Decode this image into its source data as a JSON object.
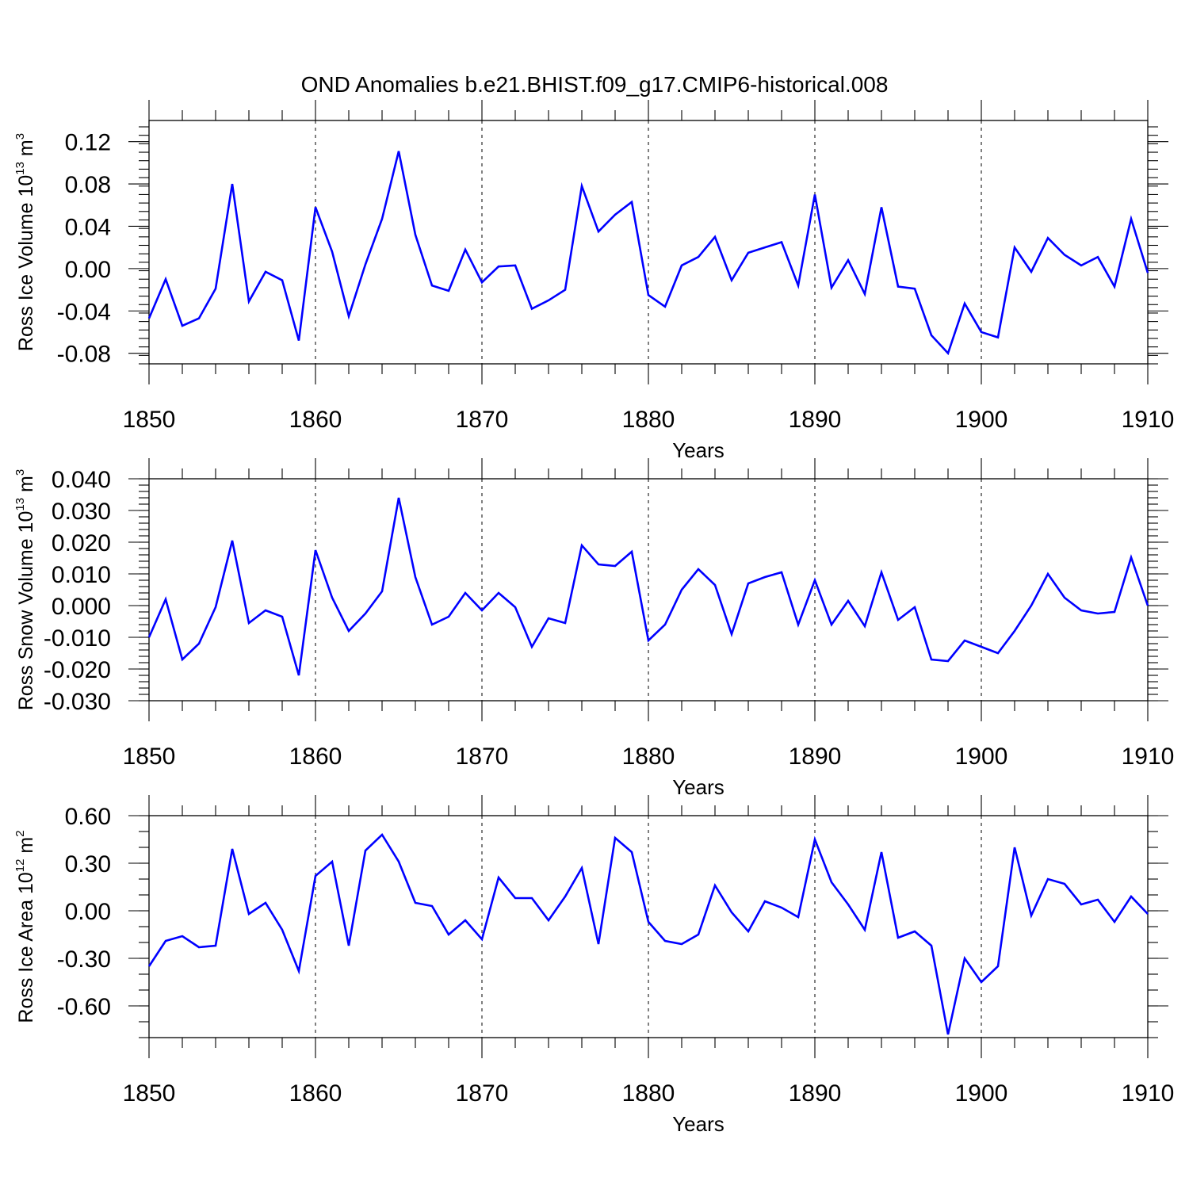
{
  "chart_data": {
    "title": "OND Anomalies b.e21.BHIST.f09_g17.CMIP6-historical.008",
    "type": "line",
    "line_color": "#0000FF",
    "panels": [
      {
        "ylabel_main": "Ross Ice Volume 10",
        "ylabel_exp": "13",
        "ylabel_unit": " m",
        "ylabel_unit_exp": "3",
        "xlabel": "Years",
        "xlim": [
          1850,
          1910
        ],
        "ylim": [
          -0.09,
          0.14
        ],
        "x_ticks": [
          1850,
          1860,
          1870,
          1880,
          1890,
          1900,
          1910
        ],
        "x_tick_labels": [
          "1850",
          "1860",
          "1870",
          "1880",
          "1890",
          "1900",
          "1910"
        ],
        "y_ticks": [
          -0.08,
          -0.04,
          0.0,
          0.04,
          0.08,
          0.12
        ],
        "y_tick_labels": [
          "-0.08",
          "-0.04",
          "0.00",
          "0.04",
          "0.08",
          "0.12"
        ],
        "y_minor_step": 0.008,
        "x_start": 1850,
        "values": [
          -0.047,
          -0.01,
          -0.054,
          -0.047,
          -0.019,
          0.08,
          -0.031,
          -0.003,
          -0.011,
          -0.068,
          0.058,
          0.016,
          -0.045,
          0.004,
          0.047,
          0.111,
          0.032,
          -0.016,
          -0.021,
          0.018,
          -0.013,
          0.002,
          0.003,
          -0.038,
          -0.03,
          -0.02,
          0.078,
          0.035,
          0.051,
          0.063,
          -0.025,
          -0.036,
          0.003,
          0.011,
          0.03,
          -0.011,
          0.015,
          0.02,
          0.025,
          -0.016,
          0.07,
          -0.018,
          0.008,
          -0.024,
          0.058,
          -0.017,
          -0.019,
          -0.063,
          -0.08,
          -0.033,
          -0.06,
          -0.065,
          0.02,
          -0.003,
          0.029,
          0.013,
          0.003,
          0.011,
          -0.017,
          0.047,
          -0.004
        ]
      },
      {
        "ylabel_main": "Ross Snow Volume 10",
        "ylabel_exp": "13",
        "ylabel_unit": " m",
        "ylabel_unit_exp": "3",
        "xlabel": "Years",
        "xlim": [
          1850,
          1910
        ],
        "ylim": [
          -0.03,
          0.04
        ],
        "x_ticks": [
          1850,
          1860,
          1870,
          1880,
          1890,
          1900,
          1910
        ],
        "x_tick_labels": [
          "1850",
          "1860",
          "1870",
          "1880",
          "1890",
          "1900",
          "1910"
        ],
        "y_ticks": [
          -0.03,
          -0.02,
          -0.01,
          0.0,
          0.01,
          0.02,
          0.03,
          0.04
        ],
        "y_tick_labels": [
          "-0.030",
          "-0.020",
          "-0.010",
          "0.000",
          "0.010",
          "0.020",
          "0.030",
          "0.040"
        ],
        "y_minor_step": 0.002,
        "x_start": 1850,
        "values": [
          -0.01,
          0.002,
          -0.017,
          -0.012,
          -0.0005,
          0.0205,
          -0.0055,
          -0.0015,
          -0.0035,
          -0.022,
          0.0175,
          0.0025,
          -0.008,
          -0.0025,
          0.0045,
          0.034,
          0.009,
          -0.006,
          -0.0035,
          0.004,
          -0.0015,
          0.004,
          -0.0005,
          -0.013,
          -0.004,
          -0.0055,
          0.019,
          0.013,
          0.0125,
          0.017,
          -0.011,
          -0.006,
          0.005,
          0.0115,
          0.0065,
          -0.009,
          0.007,
          0.009,
          0.0105,
          -0.006,
          0.008,
          -0.006,
          0.0015,
          -0.0065,
          0.0105,
          -0.0045,
          -0.0005,
          -0.017,
          -0.0175,
          -0.011,
          -0.013,
          -0.015,
          -0.008,
          0.0,
          0.01,
          0.0025,
          -0.0015,
          -0.0025,
          -0.002,
          0.0152,
          0.0
        ]
      },
      {
        "ylabel_main": "Ross Ice Area 10",
        "ylabel_exp": "12",
        "ylabel_unit": " m",
        "ylabel_unit_exp": "2",
        "xlabel": "Years",
        "xlim": [
          1850,
          1910
        ],
        "ylim": [
          -0.8,
          0.6
        ],
        "x_ticks": [
          1850,
          1860,
          1870,
          1880,
          1890,
          1900,
          1910
        ],
        "x_tick_labels": [
          "1850",
          "1860",
          "1870",
          "1880",
          "1890",
          "1900",
          "1910"
        ],
        "y_ticks": [
          -0.6,
          -0.3,
          0.0,
          0.3,
          0.6
        ],
        "y_tick_labels": [
          "-0.60",
          "-0.30",
          "0.00",
          "0.30",
          "0.60"
        ],
        "y_minor_step": 0.1,
        "x_start": 1850,
        "values": [
          -0.35,
          -0.19,
          -0.16,
          -0.23,
          -0.22,
          0.39,
          -0.02,
          0.05,
          -0.12,
          -0.38,
          0.22,
          0.31,
          -0.22,
          0.38,
          0.48,
          0.31,
          0.05,
          0.03,
          -0.15,
          -0.06,
          -0.18,
          0.21,
          0.08,
          0.08,
          -0.06,
          0.09,
          0.27,
          -0.21,
          0.46,
          0.37,
          -0.07,
          -0.19,
          -0.21,
          -0.15,
          0.16,
          -0.01,
          -0.13,
          0.06,
          0.02,
          -0.04,
          0.45,
          0.18,
          0.04,
          -0.12,
          0.37,
          -0.17,
          -0.13,
          -0.22,
          -0.78,
          -0.3,
          -0.45,
          -0.35,
          0.4,
          -0.03,
          0.2,
          0.17,
          0.04,
          0.07,
          -0.07,
          0.09,
          -0.02
        ]
      }
    ]
  }
}
